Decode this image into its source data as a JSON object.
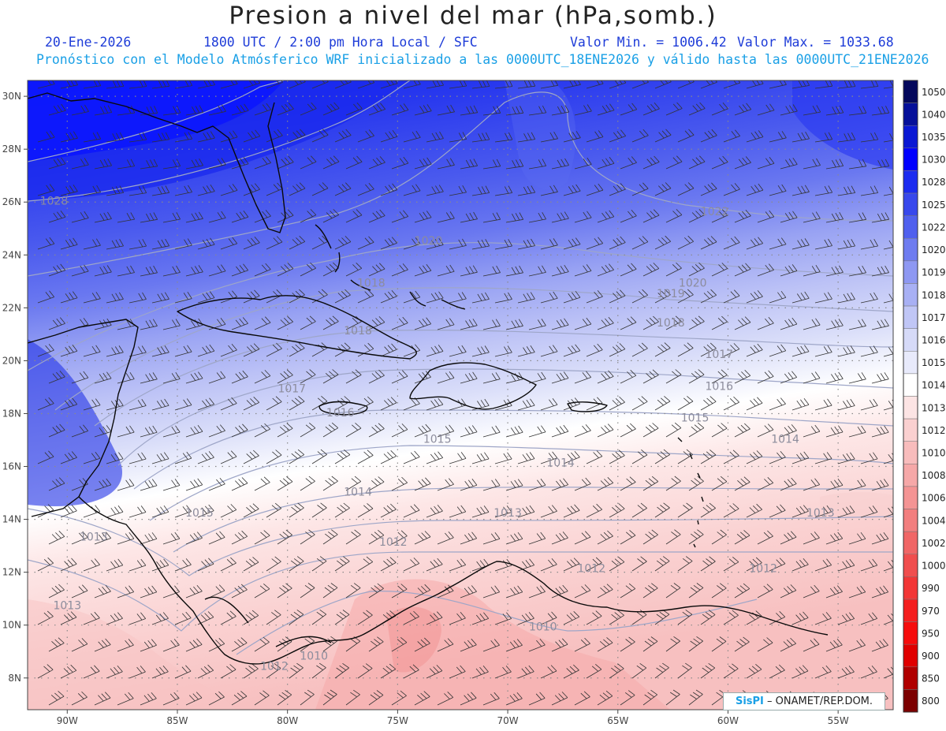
{
  "header": {
    "title": "Presion a nivel del mar (hPa,somb.)",
    "date": "20-Ene-2026",
    "time": "1800 UTC / 2:00 pm Hora Local / SFC",
    "min_label": "Valor Min. = 1006.42",
    "max_label": "Valor Max. = 1033.68",
    "subtitle": "Pronóstico con el Modelo Atmósferico WRF inicializado a las 0000UTC_18ENE2026 y válido hasta las  0000UTC_21ENE2026"
  },
  "axes": {
    "lon_ticks": [
      {
        "value": -90,
        "label": "90W"
      },
      {
        "value": -85,
        "label": "85W"
      },
      {
        "value": -80,
        "label": "80W"
      },
      {
        "value": -75,
        "label": "75W"
      },
      {
        "value": -70,
        "label": "70W"
      },
      {
        "value": -65,
        "label": "65W"
      },
      {
        "value": -60,
        "label": "60W"
      },
      {
        "value": -55,
        "label": "55W"
      }
    ],
    "lat_ticks": [
      {
        "value": 30,
        "label": "30N"
      },
      {
        "value": 28,
        "label": "28N"
      },
      {
        "value": 26,
        "label": "26N"
      },
      {
        "value": 24,
        "label": "24N"
      },
      {
        "value": 22,
        "label": "22N"
      },
      {
        "value": 20,
        "label": "20N"
      },
      {
        "value": 18,
        "label": "18N"
      },
      {
        "value": 16,
        "label": "16N"
      },
      {
        "value": 14,
        "label": "14N"
      },
      {
        "value": 12,
        "label": "12N"
      },
      {
        "value": 10,
        "label": "10N"
      },
      {
        "value": 8,
        "label": "8N"
      }
    ],
    "lon_range": [
      -91.8,
      -52.5
    ],
    "lat_range": [
      6.8,
      30.6
    ]
  },
  "colorbar": [
    {
      "label": "1050",
      "color": "#04085c"
    },
    {
      "label": "1040",
      "color": "#06109a"
    },
    {
      "label": "1035",
      "color": "#0a18d4"
    },
    {
      "label": "1030",
      "color": "#0000ff"
    },
    {
      "label": "1028",
      "color": "#1c2cf0"
    },
    {
      "label": "1025",
      "color": "#3848ec"
    },
    {
      "label": "1022",
      "color": "#5060ee"
    },
    {
      "label": "1020",
      "color": "#6e7cf0"
    },
    {
      "label": "1019",
      "color": "#8e98f2"
    },
    {
      "label": "1018",
      "color": "#a8b0f4"
    },
    {
      "label": "1017",
      "color": "#c0c6f6"
    },
    {
      "label": "1016",
      "color": "#d6daf8"
    },
    {
      "label": "1015",
      "color": "#e8eafb"
    },
    {
      "label": "1014",
      "color": "#ffffff"
    },
    {
      "label": "1013",
      "color": "#fce4e4"
    },
    {
      "label": "1012",
      "color": "#fad0d0"
    },
    {
      "label": "1010",
      "color": "#f8bcbc"
    },
    {
      "label": "1008",
      "color": "#f6a8a8"
    },
    {
      "label": "1006",
      "color": "#f49494"
    },
    {
      "label": "1004",
      "color": "#f27e7e"
    },
    {
      "label": "1002",
      "color": "#f06666"
    },
    {
      "label": "1000",
      "color": "#f04e4e"
    },
    {
      "label": "990",
      "color": "#f23636"
    },
    {
      "label": "970",
      "color": "#f41e1e"
    },
    {
      "label": "950",
      "color": "#f60c0c"
    },
    {
      "label": "900",
      "color": "#e00000"
    },
    {
      "label": "850",
      "color": "#b00000"
    },
    {
      "label": "800",
      "color": "#7c0000"
    }
  ],
  "isobar_labels": [
    {
      "label": "1028",
      "lon": -90.6,
      "lat": 25.9
    },
    {
      "label": "1022",
      "lon": -60.6,
      "lat": 25.5
    },
    {
      "label": "1020",
      "lon": -73.6,
      "lat": 24.4
    },
    {
      "label": "1020",
      "lon": -61.6,
      "lat": 22.8
    },
    {
      "label": "1019",
      "lon": -62.6,
      "lat": 22.4
    },
    {
      "label": "1018",
      "lon": -76.2,
      "lat": 22.8
    },
    {
      "label": "1018",
      "lon": -76.8,
      "lat": 21.0
    },
    {
      "label": "1018",
      "lon": -62.6,
      "lat": 21.3
    },
    {
      "label": "1017",
      "lon": -60.4,
      "lat": 20.1
    },
    {
      "label": "1017",
      "lon": -79.8,
      "lat": 18.8
    },
    {
      "label": "1016",
      "lon": -60.4,
      "lat": 18.9
    },
    {
      "label": "1016",
      "lon": -77.6,
      "lat": 17.9
    },
    {
      "label": "1015",
      "lon": -61.5,
      "lat": 17.7
    },
    {
      "label": "1015",
      "lon": -73.2,
      "lat": 16.9
    },
    {
      "label": "1015",
      "lon": -84.0,
      "lat": 14.1
    },
    {
      "label": "1014",
      "lon": -57.4,
      "lat": 16.9
    },
    {
      "label": "1014",
      "lon": -67.6,
      "lat": 16.0
    },
    {
      "label": "1014",
      "lon": -76.8,
      "lat": 14.9
    },
    {
      "label": "1013",
      "lon": -70.0,
      "lat": 14.1
    },
    {
      "label": "1013",
      "lon": -55.8,
      "lat": 14.1
    },
    {
      "label": "1013",
      "lon": -88.8,
      "lat": 13.2
    },
    {
      "label": "1013",
      "lon": -90.0,
      "lat": 10.6
    },
    {
      "label": "1012",
      "lon": -75.2,
      "lat": 13.0
    },
    {
      "label": "1012",
      "lon": -66.2,
      "lat": 12.0
    },
    {
      "label": "1012",
      "lon": -58.4,
      "lat": 12.0
    },
    {
      "label": "1012",
      "lon": -80.6,
      "lat": 8.3
    },
    {
      "label": "1010",
      "lon": -68.4,
      "lat": 9.8
    },
    {
      "label": "1010",
      "lon": -78.8,
      "lat": 8.7
    }
  ],
  "credit": {
    "brand": "SisPI",
    "text": "– ONAMET/REP.DOM."
  }
}
